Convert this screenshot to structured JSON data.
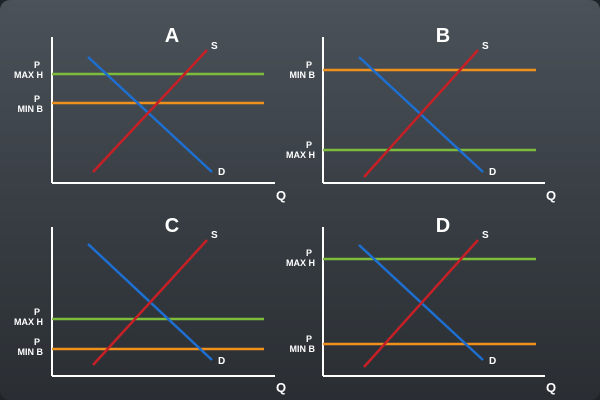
{
  "colors": {
    "axis": "#ffffff",
    "supply": "#c62026",
    "demand": "#1d6fd1",
    "max_line": "#7dbb3b",
    "min_line": "#ef8f1c"
  },
  "panels": [
    {
      "id": "A",
      "letter": "A",
      "q_label": "Q",
      "s_label": "S",
      "d_label": "D",
      "max_label": {
        "line1": "P",
        "line2": "MAX H"
      },
      "min_label": {
        "line1": "P",
        "line2": "MIN B"
      },
      "max_above_min": true,
      "both_above_equilibrium": true
    },
    {
      "id": "B",
      "letter": "B",
      "q_label": "Q",
      "s_label": "S",
      "d_label": "D",
      "max_label": {
        "line1": "P",
        "line2": "MAX H"
      },
      "min_label": {
        "line1": "P",
        "line2": "MIN B"
      },
      "max_above_min": false,
      "both_above_equilibrium": false
    },
    {
      "id": "C",
      "letter": "C",
      "q_label": "Q",
      "s_label": "S",
      "d_label": "D",
      "max_label": {
        "line1": "P",
        "line2": "MAX H"
      },
      "min_label": {
        "line1": "P",
        "line2": "MIN B"
      },
      "max_above_min": true,
      "both_above_equilibrium": false
    },
    {
      "id": "D",
      "letter": "D",
      "q_label": "Q",
      "s_label": "S",
      "d_label": "D",
      "max_label": {
        "line1": "P",
        "line2": "MAX H"
      },
      "min_label": {
        "line1": "P",
        "line2": "MIN B"
      },
      "max_above_min": true,
      "both_above_equilibrium": false
    }
  ]
}
